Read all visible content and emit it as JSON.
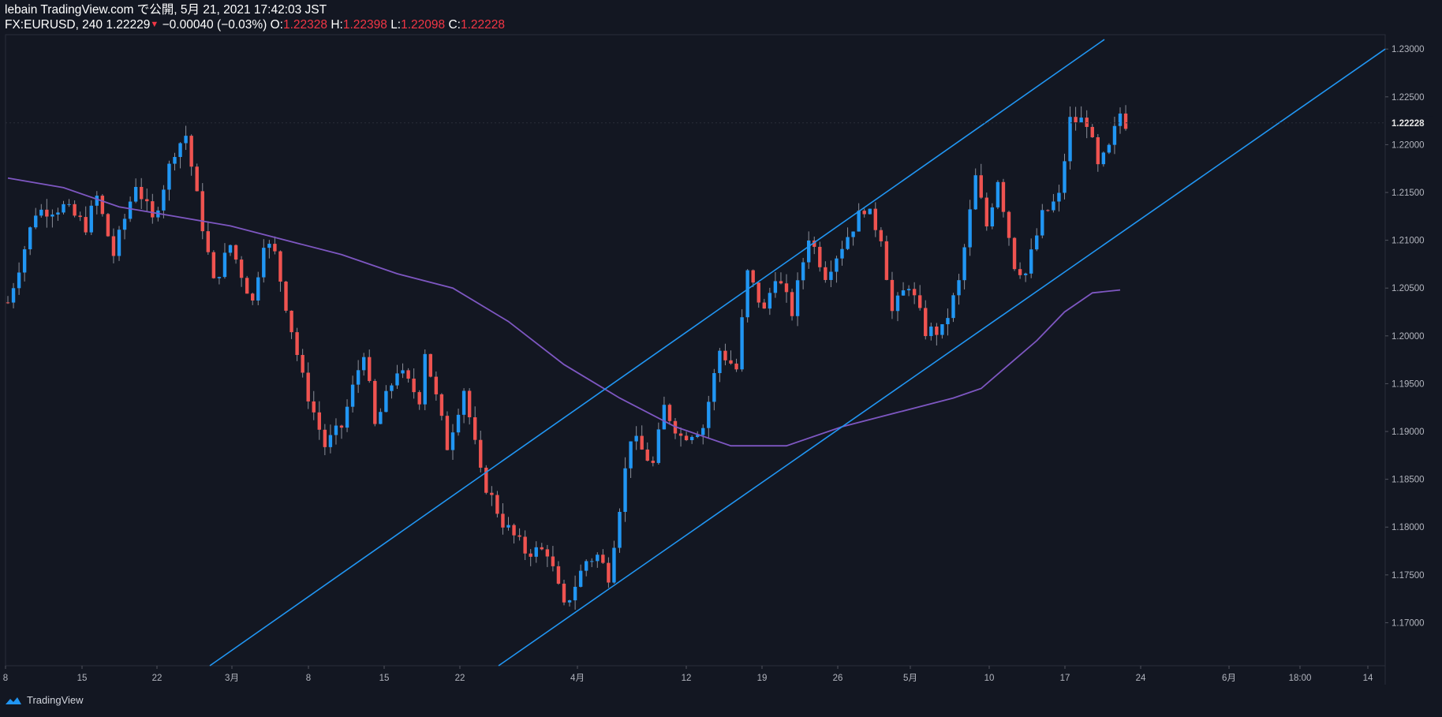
{
  "header": {
    "publisher": "lebain TradingView.com で公開, 5月 21, 2021 17:42:03 JST",
    "symbol": "FX:EURUSD, 240",
    "last": "1.22229",
    "change": "−0.00040 (−0.03%)",
    "o_label": "O:",
    "o_value": "1.22328",
    "h_label": "H:",
    "h_value": "1.22398",
    "l_label": "L:",
    "l_value": "1.22098",
    "c_label": "C:",
    "c_value": "1.22228"
  },
  "footer": {
    "brand": "TradingView"
  },
  "colors": {
    "background": "#131722",
    "up": "#2196f3",
    "down": "#ef5350",
    "trendline": "#2196f3",
    "moving_average": "#7e57c2",
    "price_tag": "#e6e6e6"
  },
  "chart_data": {
    "type": "candlestick",
    "symbol": "FX:EURUSD",
    "timeframe": "240",
    "x_labels": [
      "8",
      "15",
      "22",
      "3月",
      "8",
      "15",
      "22",
      "4月",
      "12",
      "19",
      "26",
      "5月",
      "10",
      "17",
      "24",
      "6月",
      "18:00",
      "14"
    ],
    "y_ticks": [
      "1.23000",
      "1.22500",
      "1.22000",
      "1.21500",
      "1.21000",
      "1.20500",
      "1.20000",
      "1.19500",
      "1.19000",
      "1.18500",
      "1.18000",
      "1.17500",
      "1.17000"
    ],
    "ylim": [
      1.1655,
      1.2315
    ],
    "current_price": "1.22228",
    "price_path": [
      [
        0,
        1.2035
      ],
      [
        5,
        1.213
      ],
      [
        10,
        1.2135
      ],
      [
        14,
        1.2115
      ],
      [
        16,
        1.2145
      ],
      [
        19,
        1.2085
      ],
      [
        23,
        1.216
      ],
      [
        26,
        1.212
      ],
      [
        30,
        1.2195
      ],
      [
        32,
        1.221
      ],
      [
        34,
        1.2145
      ],
      [
        37,
        1.2055
      ],
      [
        40,
        1.2095
      ],
      [
        44,
        1.2035
      ],
      [
        46,
        1.21
      ],
      [
        48,
        1.2085
      ],
      [
        53,
        1.1955
      ],
      [
        57,
        1.1885
      ],
      [
        60,
        1.1905
      ],
      [
        64,
        1.1985
      ],
      [
        66,
        1.1905
      ],
      [
        70,
        1.1965
      ],
      [
        74,
        1.1935
      ],
      [
        75,
        1.1985
      ],
      [
        79,
        1.1885
      ],
      [
        82,
        1.1945
      ],
      [
        85,
        1.1855
      ],
      [
        89,
        1.1805
      ],
      [
        93,
        1.1775
      ],
      [
        97,
        1.1775
      ],
      [
        100,
        1.1715
      ],
      [
        104,
        1.1765
      ],
      [
        106,
        1.177
      ],
      [
        108,
        1.175
      ],
      [
        112,
        1.1895
      ],
      [
        116,
        1.1865
      ],
      [
        118,
        1.1925
      ],
      [
        121,
        1.1895
      ],
      [
        125,
        1.1905
      ],
      [
        128,
        1.1985
      ],
      [
        131,
        1.1965
      ],
      [
        133,
        1.2065
      ],
      [
        136,
        1.2025
      ],
      [
        138,
        1.2065
      ],
      [
        141,
        1.2025
      ],
      [
        144,
        1.2105
      ],
      [
        147,
        1.2065
      ],
      [
        150,
        1.2095
      ],
      [
        154,
        1.2135
      ],
      [
        157,
        1.2105
      ],
      [
        159,
        1.2025
      ],
      [
        162,
        1.2055
      ],
      [
        165,
        1.2005
      ],
      [
        168,
        1.2005
      ],
      [
        171,
        1.2055
      ],
      [
        174,
        1.2165
      ],
      [
        176,
        1.2115
      ],
      [
        178,
        1.2165
      ],
      [
        181,
        1.2075
      ],
      [
        183,
        1.2065
      ],
      [
        186,
        1.2125
      ],
      [
        189,
        1.2145
      ],
      [
        191,
        1.2225
      ],
      [
        194,
        1.2225
      ],
      [
        196,
        1.2175
      ],
      [
        198,
        1.2195
      ],
      [
        200,
        1.2233
      ],
      [
        201,
        1.2223
      ]
    ],
    "moving_average": [
      [
        0,
        1.2165
      ],
      [
        10,
        1.2155
      ],
      [
        20,
        1.2135
      ],
      [
        30,
        1.2125
      ],
      [
        40,
        1.2115
      ],
      [
        50,
        1.21
      ],
      [
        60,
        1.2085
      ],
      [
        70,
        1.2065
      ],
      [
        80,
        1.205
      ],
      [
        90,
        1.2015
      ],
      [
        100,
        1.197
      ],
      [
        110,
        1.1935
      ],
      [
        120,
        1.1905
      ],
      [
        130,
        1.1885
      ],
      [
        140,
        1.1885
      ],
      [
        150,
        1.1905
      ],
      [
        160,
        1.192
      ],
      [
        170,
        1.1935
      ],
      [
        175,
        1.1945
      ],
      [
        180,
        1.197
      ],
      [
        185,
        1.1995
      ],
      [
        190,
        1.2025
      ],
      [
        195,
        1.2045
      ],
      [
        200,
        1.2048
      ]
    ],
    "trendlines": [
      {
        "name": "upper-channel",
        "from": [
          "2021-02-28",
          1.1655
        ],
        "to": [
          "2021-05-19",
          1.231
        ]
      },
      {
        "name": "lower-channel",
        "from": [
          "2021-03-24",
          1.1655
        ],
        "to": [
          "2021-06-16",
          1.23
        ]
      }
    ],
    "grid": false
  }
}
